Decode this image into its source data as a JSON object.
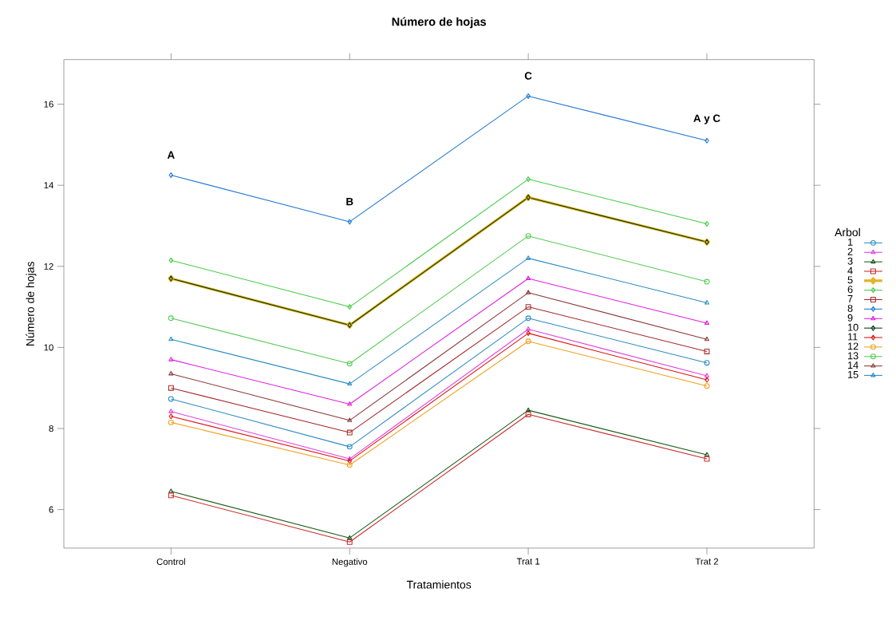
{
  "chart_data": {
    "type": "line",
    "title": "Número de hojas",
    "xlabel": "Tratamientos",
    "ylabel": "Número de hojas",
    "legend_title": "Arbol",
    "categories": [
      "Control",
      "Negativo",
      "Trat 1",
      "Trat 2"
    ],
    "ylim": [
      5.05,
      17.1
    ],
    "yticks": [
      6,
      8,
      10,
      12,
      14,
      16
    ],
    "grid": false,
    "legend": "right",
    "line_style": "solid",
    "series": [
      {
        "name": "1",
        "color": "#2b8cc4",
        "marker": "circle",
        "values": [
          8.73,
          7.55,
          10.72,
          9.62
        ]
      },
      {
        "name": "2",
        "color": "#e040e0",
        "marker": "triangle",
        "values": [
          8.42,
          7.25,
          10.45,
          9.3
        ]
      },
      {
        "name": "3",
        "color": "#1a5a1a",
        "marker": "triangle",
        "values": [
          6.45,
          5.3,
          8.45,
          7.35
        ]
      },
      {
        "name": "4",
        "color": "#cc2a2a",
        "marker": "square",
        "values": [
          6.35,
          5.2,
          8.35,
          7.25
        ]
      },
      {
        "name": "5",
        "color": "#e6b422",
        "marker": "diamond",
        "values": [
          11.7,
          10.55,
          13.7,
          12.6
        ]
      },
      {
        "name": "6",
        "color": "#44cc44",
        "marker": "diamond",
        "values": [
          12.15,
          11.0,
          14.15,
          13.05
        ]
      },
      {
        "name": "7",
        "color": "#a52a2a",
        "marker": "square",
        "values": [
          9.0,
          7.9,
          11.0,
          9.9
        ]
      },
      {
        "name": "8",
        "color": "#1f78d0",
        "marker": "diamond",
        "values": [
          14.25,
          13.1,
          16.2,
          15.1
        ]
      },
      {
        "name": "9",
        "color": "#e020e0",
        "marker": "triangle",
        "values": [
          9.7,
          8.6,
          11.7,
          10.6
        ]
      },
      {
        "name": "10",
        "color": "#0a3a0a",
        "marker": "diamond",
        "values": [
          11.7,
          10.55,
          13.7,
          12.6
        ]
      },
      {
        "name": "11",
        "color": "#dd1111",
        "marker": "diamond",
        "values": [
          8.3,
          7.2,
          10.35,
          9.2
        ]
      },
      {
        "name": "12",
        "color": "#f0a020",
        "marker": "circle",
        "values": [
          8.15,
          7.1,
          10.15,
          9.05
        ]
      },
      {
        "name": "13",
        "color": "#55cc55",
        "marker": "circle",
        "values": [
          10.72,
          9.6,
          12.75,
          11.62
        ]
      },
      {
        "name": "14",
        "color": "#8b3a3a",
        "marker": "triangle",
        "values": [
          9.35,
          8.2,
          11.35,
          10.2
        ]
      },
      {
        "name": "15",
        "color": "#2b8cc4",
        "marker": "triangle",
        "values": [
          10.2,
          9.1,
          12.2,
          11.1
        ]
      }
    ],
    "annotations": [
      "A",
      "B",
      "C",
      "A y C"
    ]
  }
}
